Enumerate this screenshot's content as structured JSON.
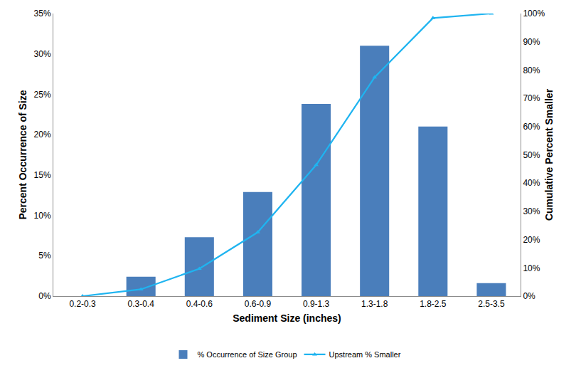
{
  "chart_data": {
    "type": "bar",
    "x_label": "Sediment Size (inches)",
    "y_label": "Percent Occurrence of Size",
    "y2_label": "Cumulative Percent Smaller",
    "categories": [
      "0.2-0.3",
      "0.3-0.4",
      "0.4-0.6",
      "0.6-0.9",
      "0.9-1.3",
      "1.3-1.8",
      "1.8-2.5",
      "2.5-3.5"
    ],
    "series": [
      {
        "name": "% Occurrence of Size Group",
        "type": "bar",
        "color": "#4a7ebb",
        "values": [
          0,
          2.4,
          7.3,
          12.9,
          23.8,
          31.0,
          21.0,
          1.6
        ]
      },
      {
        "name": "Upstream % Smaller",
        "type": "line",
        "axis": "y2",
        "color": "#1fb4f0",
        "marker": "triangle-up",
        "values": [
          0,
          2.4,
          9.7,
          22.6,
          46.4,
          77.4,
          98.4,
          100
        ]
      }
    ],
    "ylim": [
      0,
      35
    ],
    "yticks": [
      {
        "value": 0,
        "label": "0%"
      },
      {
        "value": 5,
        "label": "5%"
      },
      {
        "value": 10,
        "label": "10%"
      },
      {
        "value": 15,
        "label": "15%"
      },
      {
        "value": 20,
        "label": "20%"
      },
      {
        "value": 25,
        "label": "25%"
      },
      {
        "value": 30,
        "label": "30%"
      },
      {
        "value": 35,
        "label": "35%"
      }
    ],
    "y2lim": [
      0,
      100
    ],
    "y2ticks": [
      {
        "value": 0,
        "label": "0%"
      },
      {
        "value": 10,
        "label": "10%"
      },
      {
        "value": 20,
        "label": "20%"
      },
      {
        "value": 30,
        "label": "30%"
      },
      {
        "value": 40,
        "label": "40%"
      },
      {
        "value": 50,
        "label": "50%"
      },
      {
        "value": 60,
        "label": "60%"
      },
      {
        "value": 70,
        "label": "70%"
      },
      {
        "value": 80,
        "label": "80%"
      },
      {
        "value": 90,
        "label": "90%"
      },
      {
        "value": 100,
        "label": "100%"
      }
    ],
    "grid": false,
    "legend": "bottom"
  }
}
